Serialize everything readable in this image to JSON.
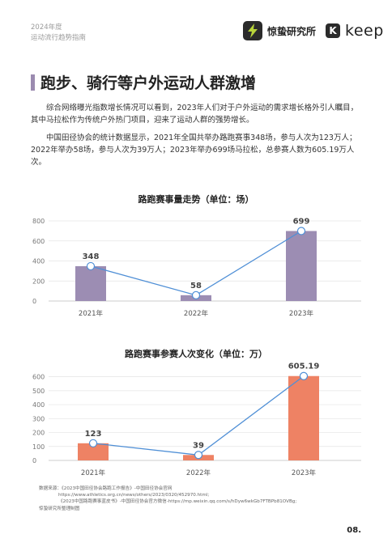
{
  "header": {
    "year_label": "2024年度",
    "guide_label": "运动流行趋势指南",
    "brand_name": "惊蛰研究所",
    "keep_mark": "K",
    "keep_word": "keep"
  },
  "section": {
    "title": "跑步、骑行等户外运动人群激增"
  },
  "paragraphs": [
    "综合网络曝光指数增长情况可以看到，2023年人们对于户外运动的需求增长格外引人瞩目，其中马拉松作为传统户外热门项目，迎来了运动人群的强势增长。",
    "中国田径协会的统计数据显示，2021年全国共举办路跑赛事348场，参与人次为123万人；2022年举办58场，参与人次为39万人；2023年举办699场马拉松，总参赛人数为605.19万人次。"
  ],
  "chart_data": [
    {
      "type": "bar",
      "title": "路跑赛事量走势（单位：场）",
      "categories": [
        "2021年",
        "2022年",
        "2023年"
      ],
      "values": [
        348,
        58,
        699
      ],
      "data_labels": [
        "348",
        "58",
        "699"
      ],
      "yticks": [
        "800",
        "600",
        "400",
        "200",
        "0"
      ],
      "ylim": [
        0,
        800
      ],
      "grid": true,
      "overlay": "line",
      "bar_color": "#9c8db3",
      "line_color": "#4f8fd6"
    },
    {
      "type": "bar",
      "title": "路跑赛事参赛人次变化（单位：万）",
      "categories": [
        "2021年",
        "2022年",
        "2023年"
      ],
      "values": [
        123,
        39,
        605.19
      ],
      "data_labels": [
        "123",
        "39",
        "605.19"
      ],
      "yticks": [
        "600",
        "500",
        "400",
        "300",
        "200",
        "100",
        "0"
      ],
      "ylim": [
        0,
        650
      ],
      "grid": true,
      "overlay": "line",
      "bar_color": "#ee8264",
      "line_color": "#4f8fd6"
    }
  ],
  "source": {
    "lines": [
      "数据来源：《2023中国田径协会路跑工作报告》-中国田径协会官网",
      "https://www.athletics.org.cn/news/others/2023/0320/452970.html;",
      "《2023中国路跑赛事蓝皮书》-中国田径协会官方微信-https://mp.weixin.qq.com/s/hDyw6wkGb7FTBPb81OVBg;",
      "惊蛰研究所整理制图"
    ]
  },
  "page": {
    "number": "08."
  }
}
